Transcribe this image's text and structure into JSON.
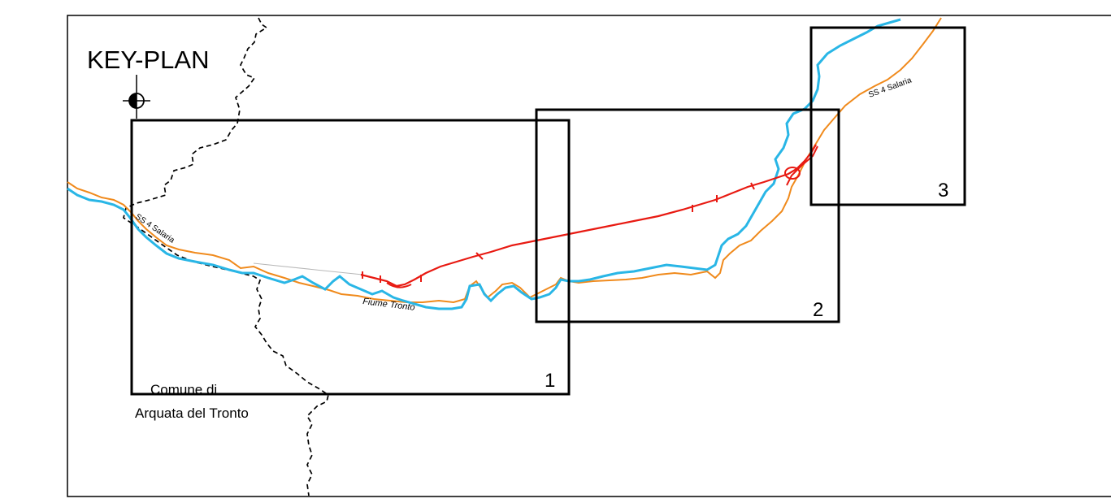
{
  "title": "KEY-PLAN",
  "sheets": [
    {
      "number": "1"
    },
    {
      "number": "2"
    },
    {
      "number": "3"
    }
  ],
  "labels": {
    "road_west": "SS 4 Salaria",
    "road_east": "SS 4 Salaria",
    "river": "Fiume Tronto",
    "comune_line1": "Comune di",
    "comune_line2": "Arquata del Tronto"
  },
  "colors": {
    "river": "#29b6e6",
    "road": "#f08a1c",
    "project_route": "#e81a12",
    "boundary": "#000000",
    "frame": "#000000"
  },
  "icons": {
    "north_symbol": "north-arrow-icon"
  }
}
